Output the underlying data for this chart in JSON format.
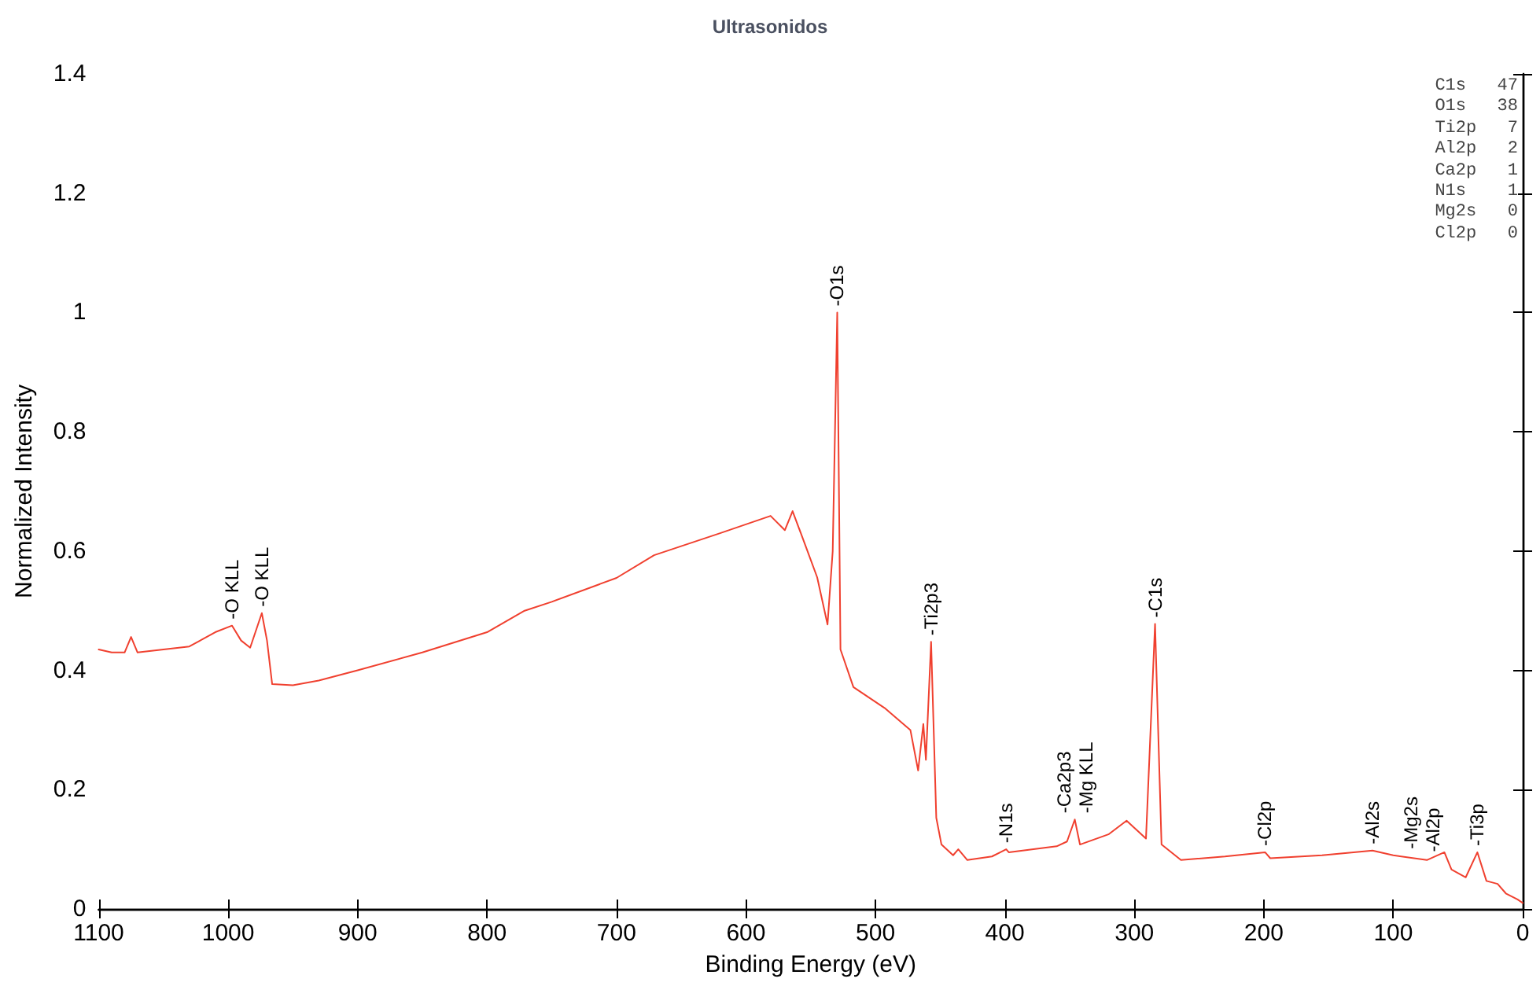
{
  "chart_data": {
    "type": "line",
    "title": "Ultrasonidos",
    "xlabel": "Binding Energy (eV)",
    "ylabel": "Normalized Intensity",
    "xlim": [
      1100,
      0
    ],
    "xticks": [
      1100,
      1000,
      900,
      800,
      700,
      600,
      500,
      400,
      300,
      200,
      100,
      0
    ],
    "ylim": [
      0,
      1.4
    ],
    "yticks": [
      0,
      0.2,
      0.4,
      0.6,
      0.8,
      1,
      1.2,
      1.4
    ],
    "grid": false,
    "marker": "none",
    "line_style": "solid",
    "series": [
      {
        "color": "#f0402f",
        "x": [
          1100,
          1090,
          1080,
          1075,
          1070,
          1050,
          1030,
          1010,
          997,
          990,
          983,
          974,
          970,
          966,
          950,
          930,
          900,
          850,
          800,
          771,
          750,
          700,
          671,
          620,
          581,
          570,
          564,
          554,
          545,
          537,
          533,
          529.5,
          527,
          517,
          493,
          473,
          467,
          463,
          461,
          457,
          453,
          449,
          440,
          436,
          429,
          410,
          399,
          397,
          360,
          352,
          346,
          342,
          320,
          306,
          291,
          284,
          279,
          264,
          230,
          199,
          195,
          155,
          116,
          100,
          74,
          60.5,
          55,
          44,
          35,
          28,
          19.4,
          13,
          4,
          0
        ],
        "values": [
          0.435,
          0.43,
          0.43,
          0.456,
          0.43,
          0.435,
          0.44,
          0.464,
          0.475,
          0.45,
          0.438,
          0.496,
          0.45,
          0.377,
          0.375,
          0.383,
          0.4,
          0.43,
          0.464,
          0.5,
          0.515,
          0.555,
          0.593,
          0.63,
          0.659,
          0.635,
          0.667,
          0.609,
          0.556,
          0.477,
          0.6,
          1.0,
          0.435,
          0.372,
          0.337,
          0.3,
          0.232,
          0.31,
          0.25,
          0.448,
          0.153,
          0.108,
          0.09,
          0.1,
          0.082,
          0.088,
          0.1,
          0.095,
          0.105,
          0.113,
          0.15,
          0.108,
          0.125,
          0.148,
          0.118,
          0.478,
          0.108,
          0.082,
          0.088,
          0.095,
          0.085,
          0.09,
          0.098,
          0.09,
          0.082,
          0.095,
          0.066,
          0.053,
          0.095,
          0.047,
          0.042,
          0.026,
          0.016,
          0.01
        ]
      }
    ],
    "annotations": [
      {
        "text": "-O KLL",
        "x": 997,
        "y": 0.475
      },
      {
        "text": "-O KLL",
        "x": 974,
        "y": 0.496
      },
      {
        "text": "-O1s",
        "x": 529.5,
        "y": 1.0
      },
      {
        "text": "-Ti2p3",
        "x": 457,
        "y": 0.448
      },
      {
        "text": "-N1s",
        "x": 399,
        "y": 0.1
      },
      {
        "text": "-Ca2p3",
        "x": 347,
        "y": 0.15
      },
      {
        "text": "-Mg KLL",
        "x": 345,
        "y": 0.15
      },
      {
        "text": "-C1s",
        "x": 284,
        "y": 0.478
      },
      {
        "text": "-Cl2p",
        "x": 199,
        "y": 0.095
      },
      {
        "text": "-Al2s",
        "x": 116,
        "y": 0.098
      },
      {
        "text": "-Mg2s",
        "x": 86,
        "y": 0.09
      },
      {
        "text": "-Al2p",
        "x": 70,
        "y": 0.085
      },
      {
        "text": "-Ti3p",
        "x": 35,
        "y": 0.095
      },
      "C1s   47",
      "O1s   38",
      "Ti2p   7",
      "Al2p   2",
      "Ca2p   1",
      "N1s    1",
      "Mg2s   0",
      "Cl2p   0"
    ]
  }
}
